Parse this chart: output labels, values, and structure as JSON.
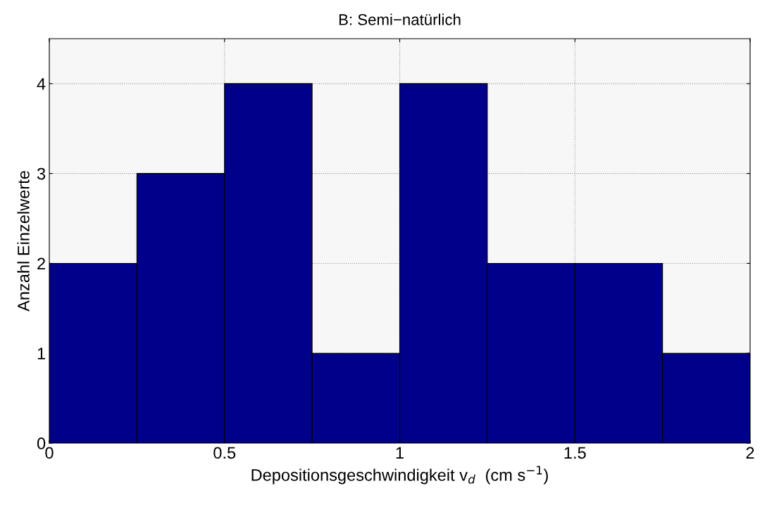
{
  "chart_data": {
    "type": "histogram",
    "title": "B: Semi−natürlich",
    "xlabel": "Depositionsgeschwindigkeit v$_{d}$  (cm s$^{−1}$)",
    "ylabel": "Anzahl Einzelwerte",
    "bins": [
      0,
      0.25,
      0.5,
      0.75,
      1,
      1.25,
      1.5,
      1.75,
      2
    ],
    "values": [
      2,
      3,
      4,
      1,
      4,
      2,
      2,
      1
    ],
    "color": "#00008b",
    "xlim": [
      0,
      2
    ],
    "xticks": [
      0,
      0.5,
      1,
      1.5,
      2
    ],
    "ylim": [
      0,
      4.5
    ],
    "yticks": [
      0,
      1,
      2,
      3,
      4
    ],
    "grid": true
  }
}
